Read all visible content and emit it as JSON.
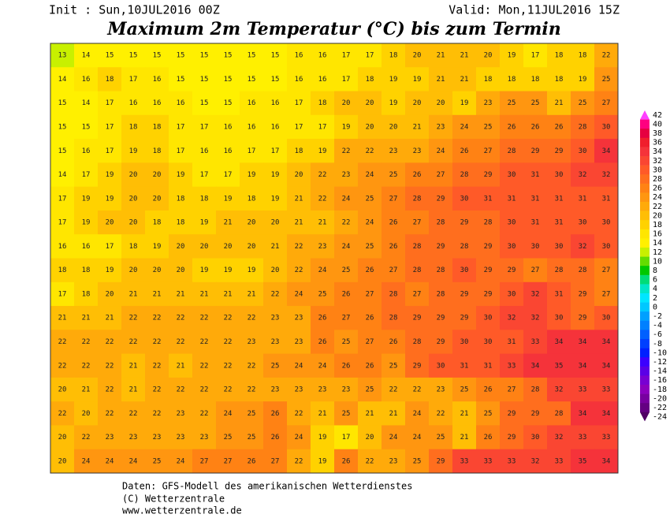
{
  "header": {
    "init": "Init : Sun,10JUL2016 00Z",
    "valid": "Valid: Mon,11JUL2016 15Z",
    "title": "Maximum 2m Temperatur (°C) bis zum Termin"
  },
  "grid": [
    [
      13,
      14,
      15,
      15,
      15,
      15,
      15,
      15,
      15,
      15,
      16,
      16,
      17,
      17,
      18,
      20,
      21,
      21,
      20,
      19,
      17,
      18,
      18,
      22
    ],
    [
      14,
      16,
      18,
      17,
      16,
      15,
      15,
      15,
      15,
      15,
      16,
      16,
      17,
      18,
      19,
      19,
      21,
      21,
      18,
      18,
      18,
      18,
      19,
      25
    ],
    [
      15,
      14,
      17,
      16,
      16,
      16,
      15,
      15,
      16,
      16,
      17,
      18,
      20,
      20,
      19,
      20,
      20,
      19,
      23,
      25,
      25,
      21,
      25,
      27
    ],
    [
      15,
      15,
      17,
      18,
      18,
      17,
      17,
      16,
      16,
      16,
      17,
      17,
      19,
      20,
      20,
      21,
      23,
      24,
      25,
      26,
      26,
      26,
      28,
      30
    ],
    [
      15,
      16,
      17,
      19,
      18,
      17,
      16,
      16,
      17,
      17,
      18,
      19,
      22,
      22,
      23,
      23,
      24,
      26,
      27,
      28,
      29,
      29,
      30,
      34
    ],
    [
      14,
      17,
      19,
      20,
      20,
      19,
      17,
      17,
      19,
      19,
      20,
      22,
      23,
      24,
      25,
      26,
      27,
      28,
      29,
      30,
      31,
      30,
      32,
      32
    ],
    [
      17,
      19,
      19,
      20,
      20,
      18,
      18,
      19,
      18,
      19,
      21,
      22,
      24,
      25,
      27,
      28,
      29,
      30,
      31,
      31,
      31,
      31,
      31,
      31
    ],
    [
      17,
      19,
      20,
      20,
      18,
      18,
      19,
      21,
      20,
      20,
      21,
      21,
      22,
      24,
      26,
      27,
      28,
      29,
      28,
      30,
      31,
      31,
      30,
      30
    ],
    [
      16,
      16,
      17,
      18,
      19,
      20,
      20,
      20,
      20,
      21,
      22,
      23,
      24,
      25,
      26,
      28,
      29,
      28,
      29,
      30,
      30,
      30,
      32,
      30
    ],
    [
      18,
      18,
      19,
      20,
      20,
      20,
      19,
      19,
      19,
      20,
      22,
      24,
      25,
      26,
      27,
      28,
      28,
      30,
      29,
      29,
      27,
      28,
      28,
      27
    ],
    [
      17,
      18,
      20,
      21,
      21,
      21,
      21,
      21,
      21,
      22,
      24,
      25,
      26,
      27,
      28,
      27,
      28,
      29,
      29,
      30,
      32,
      31,
      29,
      27
    ],
    [
      21,
      21,
      21,
      22,
      22,
      22,
      22,
      22,
      22,
      23,
      23,
      26,
      27,
      26,
      28,
      29,
      29,
      29,
      30,
      32,
      32,
      30,
      29,
      30
    ],
    [
      22,
      22,
      22,
      22,
      22,
      22,
      22,
      22,
      23,
      23,
      23,
      26,
      25,
      27,
      26,
      28,
      29,
      30,
      30,
      31,
      33,
      34,
      34,
      34
    ],
    [
      22,
      22,
      22,
      21,
      22,
      21,
      22,
      22,
      22,
      25,
      24,
      24,
      26,
      26,
      25,
      29,
      30,
      31,
      31,
      33,
      34,
      35,
      34,
      34
    ],
    [
      20,
      21,
      22,
      21,
      22,
      22,
      22,
      22,
      22,
      23,
      23,
      23,
      23,
      25,
      22,
      22,
      23,
      25,
      26,
      27,
      28,
      32,
      33,
      33
    ],
    [
      22,
      20,
      22,
      22,
      22,
      23,
      22,
      24,
      25,
      26,
      22,
      21,
      25,
      21,
      21,
      24,
      22,
      21,
      25,
      29,
      29,
      28,
      34,
      34
    ],
    [
      20,
      22,
      23,
      23,
      23,
      23,
      23,
      25,
      25,
      26,
      24,
      19,
      17,
      20,
      24,
      24,
      25,
      21,
      26,
      29,
      30,
      32,
      33,
      33
    ],
    [
      20,
      24,
      24,
      24,
      25,
      24,
      27,
      27,
      26,
      27,
      22,
      19,
      26,
      22,
      23,
      25,
      29,
      33,
      33,
      33,
      32,
      33,
      35,
      34
    ]
  ],
  "colorbar": {
    "ticks": [
      42,
      40,
      38,
      36,
      34,
      32,
      30,
      28,
      26,
      24,
      22,
      20,
      18,
      16,
      14,
      12,
      10,
      8,
      6,
      4,
      2,
      0,
      -2,
      -4,
      -6,
      -8,
      -10,
      -12,
      -14,
      -16,
      -18,
      -20,
      -22,
      -24
    ],
    "colors": [
      "#ff40ff",
      "#ff0080",
      "#e60040",
      "#f01e2d",
      "#f5333a",
      "#fa4632",
      "#ff5a28",
      "#ff6e1e",
      "#ff8214",
      "#ff9610",
      "#ffaa0a",
      "#ffbe05",
      "#ffd200",
      "#ffe600",
      "#fff000",
      "#c8f000",
      "#64dc00",
      "#00c800",
      "#00dc78",
      "#00e6c8",
      "#00e6ff",
      "#00c8ff",
      "#00a0ff",
      "#0080ff",
      "#0060ff",
      "#0040ff",
      "#0020ff",
      "#3c00ff",
      "#5a00e6",
      "#7800d2",
      "#8c00be",
      "#7800a0",
      "#640082",
      "#500064"
    ]
  },
  "footer": [
    "Daten: GFS-Modell des amerikanischen Wetterdienstes",
    "(C) Wetterzentrale",
    "www.wetterzentrale.de"
  ]
}
